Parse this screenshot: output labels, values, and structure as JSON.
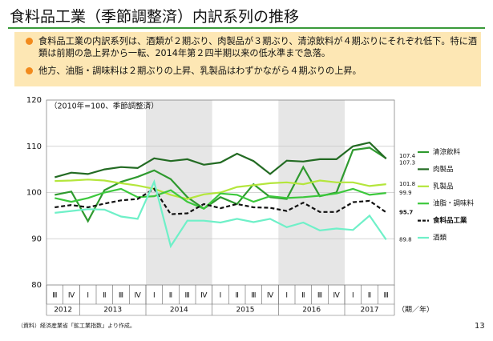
{
  "header": {
    "title": "食料品工業（季節調整済）内訳系列の推移"
  },
  "bullets": [
    "食料品工業の内訳系列は、酒類が２期ぶり、肉製品が３期ぶり、清涼飲料が４期ぶりにそれぞれ低下。特に酒類は前期の急上昇から一転、2014年第２四半期以来の低水準まで急落。",
    "他方、油脂・調味料は２期ぶりの上昇、乳製品はわずかながら４期ぶりの上昇。"
  ],
  "footer": {
    "source": "（資料）経済産業省「鉱工業指数」より作成。",
    "page": "13"
  },
  "chart_data": {
    "type": "line",
    "annotation": "（2010年=100、季節調整済）",
    "x_unit": "（期／年）",
    "categories": [
      "Ⅲ",
      "Ⅳ",
      "Ⅰ",
      "Ⅱ",
      "Ⅲ",
      "Ⅳ",
      "Ⅰ",
      "Ⅱ",
      "Ⅲ",
      "Ⅳ",
      "Ⅰ",
      "Ⅱ",
      "Ⅲ",
      "Ⅳ",
      "Ⅰ",
      "Ⅱ",
      "Ⅲ",
      "Ⅳ",
      "Ⅰ",
      "Ⅱ",
      "Ⅲ"
    ],
    "years": [
      "2012",
      "2013",
      "2014",
      "2015",
      "2016",
      "2017"
    ],
    "ylim": [
      80,
      120
    ],
    "yticks": [
      80,
      90,
      100,
      110,
      120
    ],
    "grid": true,
    "series": [
      {
        "name": "清涼飲料",
        "color": "#2f9a2f",
        "values": [
          99.5,
          100.2,
          93.8,
          100.5,
          102.3,
          103.4,
          104.8,
          102.9,
          99.0,
          96.5,
          99.0,
          97.5,
          101.8,
          99.0,
          98.6,
          105.5,
          99.2,
          100.0,
          109.2,
          109.7,
          107.4
        ]
      },
      {
        "name": "肉製品",
        "color": "#236b23",
        "values": [
          103.3,
          104.3,
          104.0,
          105.0,
          105.5,
          105.3,
          107.4,
          106.8,
          107.2,
          106.0,
          106.5,
          108.4,
          106.8,
          104.0,
          106.9,
          106.7,
          107.2,
          107.2,
          110.0,
          110.8,
          107.3
        ]
      },
      {
        "name": "乳製品",
        "color": "#b4e63c",
        "values": [
          102.5,
          102.6,
          102.8,
          102.6,
          102.0,
          101.5,
          100.8,
          99.5,
          98.6,
          99.6,
          100.0,
          101.2,
          101.6,
          102.0,
          102.2,
          101.8,
          102.6,
          102.2,
          102.2,
          101.4,
          101.8
        ]
      },
      {
        "name": "油脂・調味料",
        "color": "#3cc83c",
        "values": [
          98.8,
          98.0,
          98.8,
          100.0,
          100.8,
          99.0,
          99.2,
          100.5,
          98.0,
          96.5,
          99.8,
          99.5,
          98.0,
          99.2,
          98.8,
          99.0,
          99.3,
          99.8,
          100.8,
          99.5,
          99.9
        ]
      },
      {
        "name": "食料品工業",
        "color": "#111111",
        "dashed": true,
        "values": [
          96.8,
          97.3,
          96.8,
          97.6,
          98.3,
          98.6,
          100.8,
          95.3,
          95.5,
          97.5,
          96.6,
          97.5,
          96.8,
          96.7,
          96.0,
          97.8,
          95.8,
          95.8,
          97.9,
          98.2,
          95.7
        ]
      },
      {
        "name": "酒類",
        "color": "#6ff0c8",
        "values": [
          95.6,
          96.0,
          96.4,
          96.3,
          94.8,
          94.3,
          102.3,
          88.4,
          93.9,
          93.9,
          93.5,
          94.3,
          93.6,
          94.3,
          92.5,
          93.5,
          91.8,
          92.2,
          91.9,
          95.0,
          89.8
        ]
      }
    ]
  }
}
